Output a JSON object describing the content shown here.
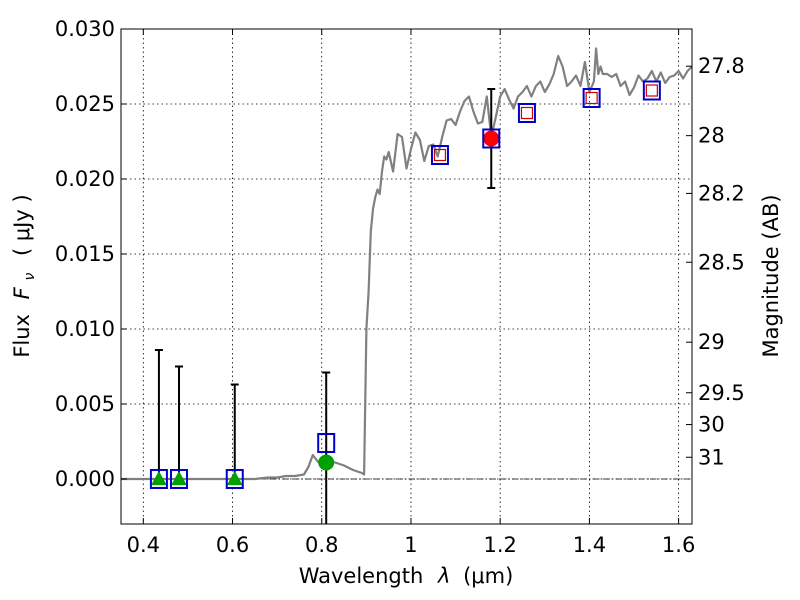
{
  "chart_data": {
    "type": "scatter",
    "xlabel_prefix": "Wavelength",
    "xlabel_symbol": "λ",
    "xlabel_unit": "(μm)",
    "ylabel_prefix": "Flux",
    "ylabel_symbol": "F",
    "ylabel_subscript": "ν",
    "ylabel_unit": "( μJy )",
    "ylabel_right": "Magnitude (AB)",
    "xlim": [
      0.35,
      1.63
    ],
    "ylim": [
      -0.003,
      0.03
    ],
    "x_ticks": [
      0.4,
      0.6,
      0.8,
      1.0,
      1.2,
      1.4,
      1.6
    ],
    "x_tick_labels": [
      "0.4",
      "0.6",
      "0.8",
      "1",
      "1.2",
      "1.4",
      "1.6"
    ],
    "y_ticks": [
      0.0,
      0.005,
      0.01,
      0.015,
      0.02,
      0.025,
      0.03
    ],
    "y_tick_labels": [
      "0.000",
      "0.005",
      "0.010",
      "0.015",
      "0.020",
      "0.025",
      "0.030"
    ],
    "right_ticks": [
      {
        "label": "27.8",
        "flux": 0.02752
      },
      {
        "label": "28",
        "flux": 0.02289
      },
      {
        "label": "28.2",
        "flux": 0.01904
      },
      {
        "label": "28.5",
        "flux": 0.01445
      },
      {
        "label": "29",
        "flux": 0.00912
      },
      {
        "label": "29.5",
        "flux": 0.00575
      },
      {
        "label": "30",
        "flux": 0.00363
      },
      {
        "label": "31",
        "flux": 0.00145
      }
    ],
    "grid": true,
    "sed_line": {
      "name": "model SED",
      "color": "#808080",
      "x": [
        0.35,
        0.45,
        0.55,
        0.65,
        0.68,
        0.7,
        0.72,
        0.74,
        0.76,
        0.77,
        0.78,
        0.79,
        0.8,
        0.82,
        0.85,
        0.87,
        0.89,
        0.895,
        0.9,
        0.905,
        0.91,
        0.915,
        0.92,
        0.925,
        0.93,
        0.935,
        0.94,
        0.945,
        0.95,
        0.96,
        0.97,
        0.98,
        0.99,
        1.0,
        1.01,
        1.02,
        1.03,
        1.04,
        1.05,
        1.06,
        1.07,
        1.08,
        1.09,
        1.1,
        1.11,
        1.12,
        1.13,
        1.14,
        1.15,
        1.16,
        1.17,
        1.18,
        1.19,
        1.2,
        1.21,
        1.22,
        1.23,
        1.24,
        1.25,
        1.26,
        1.27,
        1.28,
        1.29,
        1.3,
        1.31,
        1.32,
        1.33,
        1.34,
        1.35,
        1.36,
        1.37,
        1.38,
        1.39,
        1.4,
        1.41,
        1.415,
        1.42,
        1.425,
        1.43,
        1.44,
        1.45,
        1.46,
        1.47,
        1.48,
        1.49,
        1.5,
        1.51,
        1.52,
        1.53,
        1.54,
        1.55,
        1.56,
        1.57,
        1.58,
        1.59,
        1.6,
        1.61,
        1.62,
        1.63
      ],
      "y": [
        0.0,
        0.0,
        0.0,
        0.0,
        0.0001,
        0.0001,
        0.0002,
        0.0002,
        0.0003,
        0.0008,
        0.0016,
        0.0012,
        0.0009,
        0.0012,
        0.0009,
        0.0006,
        0.0004,
        0.0003,
        0.01,
        0.0125,
        0.0165,
        0.018,
        0.0188,
        0.0193,
        0.019,
        0.0205,
        0.0215,
        0.0213,
        0.0218,
        0.0205,
        0.023,
        0.0228,
        0.0207,
        0.022,
        0.0231,
        0.0226,
        0.0212,
        0.0222,
        0.0223,
        0.0215,
        0.0228,
        0.0239,
        0.024,
        0.0236,
        0.0245,
        0.0252,
        0.0255,
        0.0245,
        0.0237,
        0.0238,
        0.0255,
        0.0228,
        0.0241,
        0.0255,
        0.026,
        0.0253,
        0.0247,
        0.0255,
        0.0258,
        0.0262,
        0.0255,
        0.0262,
        0.0265,
        0.0258,
        0.0263,
        0.027,
        0.0282,
        0.0275,
        0.0262,
        0.0265,
        0.0269,
        0.0262,
        0.0278,
        0.0258,
        0.0265,
        0.0287,
        0.027,
        0.0275,
        0.027,
        0.027,
        0.0268,
        0.027,
        0.0262,
        0.0265,
        0.0256,
        0.0261,
        0.0269,
        0.0265,
        0.0267,
        0.0272,
        0.0265,
        0.0271,
        0.0264,
        0.0268,
        0.0269,
        0.0272,
        0.0267,
        0.0272,
        0.0275
      ]
    },
    "baseline": {
      "y": 0.0,
      "style": "dash-dot"
    },
    "error_bars": [
      {
        "x": 0.435,
        "low": 0.0,
        "high": 0.0086
      },
      {
        "x": 0.48,
        "low": 0.0,
        "high": 0.0075
      },
      {
        "x": 0.605,
        "low": 0.0,
        "high": 0.0063
      },
      {
        "x": 0.81,
        "low": -0.003,
        "high": 0.0071
      },
      {
        "x": 1.18,
        "low": 0.0194,
        "high": 0.026
      }
    ],
    "observed_points": [
      {
        "x": 0.435,
        "y": 0.0,
        "marker": "triangle",
        "color": "#00a000"
      },
      {
        "x": 0.48,
        "y": 0.0,
        "marker": "triangle",
        "color": "#00a000"
      },
      {
        "x": 0.605,
        "y": 0.0,
        "marker": "triangle",
        "color": "#00a000"
      },
      {
        "x": 0.81,
        "y": 0.0011,
        "marker": "circle",
        "color": "#00a000"
      },
      {
        "x": 1.18,
        "y": 0.0227,
        "marker": "circle",
        "color": "#ff0000"
      }
    ],
    "model_points": [
      {
        "x": 0.435,
        "y": 0.0
      },
      {
        "x": 0.48,
        "y": 0.0
      },
      {
        "x": 0.605,
        "y": 0.0
      },
      {
        "x": 0.81,
        "y": 0.0024
      },
      {
        "x": 1.065,
        "y": 0.0216
      },
      {
        "x": 1.18,
        "y": 0.0227
      },
      {
        "x": 1.26,
        "y": 0.0244
      },
      {
        "x": 1.405,
        "y": 0.0254
      },
      {
        "x": 1.54,
        "y": 0.0259
      }
    ],
    "model_marker_color": "#0000cc",
    "small_square_points": [
      {
        "x": 1.065,
        "y": 0.0216
      },
      {
        "x": 1.26,
        "y": 0.0244
      },
      {
        "x": 1.405,
        "y": 0.0254
      },
      {
        "x": 1.54,
        "y": 0.0259
      }
    ],
    "small_square_color": "#cc0000"
  }
}
